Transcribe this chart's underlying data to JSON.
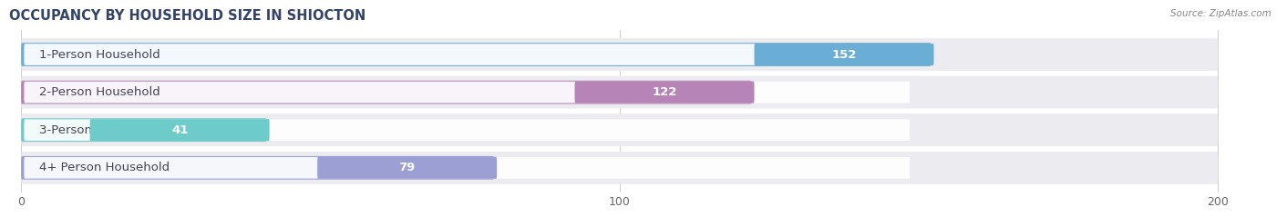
{
  "title": "OCCUPANCY BY HOUSEHOLD SIZE IN SHIOCTON",
  "source": "Source: ZipAtlas.com",
  "categories": [
    "1-Person Household",
    "2-Person Household",
    "3-Person Household",
    "4+ Person Household"
  ],
  "values": [
    152,
    122,
    41,
    79
  ],
  "bar_colors": [
    "#6aadd5",
    "#b784b8",
    "#6dcbca",
    "#9b9fd4"
  ],
  "xlim": [
    -2,
    210
  ],
  "xticks": [
    0,
    100,
    200
  ],
  "label_fontsize": 9.5,
  "value_fontsize": 9.5,
  "title_fontsize": 10.5,
  "bar_height": 0.62,
  "row_bg_color": "#ebebf0",
  "background_color": "#ffffff",
  "label_bg_color": "#ffffff",
  "text_color": "#444455"
}
